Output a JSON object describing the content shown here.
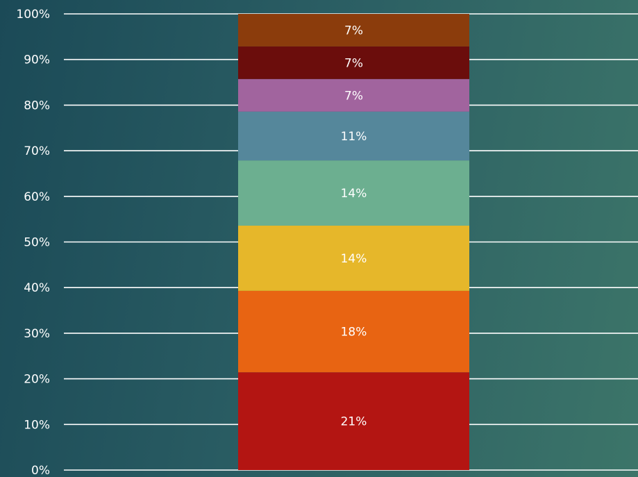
{
  "chart_data": {
    "type": "bar",
    "stacked": true,
    "normalized": true,
    "title": "",
    "xlabel": "",
    "ylabel": "",
    "ylim": [
      0,
      100
    ],
    "y_ticks": [
      "0%",
      "10%",
      "20%",
      "30%",
      "40%",
      "50%",
      "60%",
      "70%",
      "80%",
      "90%",
      "100%"
    ],
    "grid": true,
    "legend": "none",
    "series": [
      {
        "label": "21%",
        "value": 21.43,
        "color": "#b31512"
      },
      {
        "label": "18%",
        "value": 17.86,
        "color": "#e86412"
      },
      {
        "label": "14%",
        "value": 14.29,
        "color": "#e6b72a"
      },
      {
        "label": "14%",
        "value": 14.29,
        "color": "#6caf90"
      },
      {
        "label": "11%",
        "value": 10.71,
        "color": "#55879b"
      },
      {
        "label": "7%",
        "value": 7.14,
        "color": "#a1649e"
      },
      {
        "label": "7%",
        "value": 7.14,
        "color": "#6b0d0c"
      },
      {
        "label": "7%",
        "value": 7.14,
        "color": "#8b3c0c"
      }
    ]
  }
}
